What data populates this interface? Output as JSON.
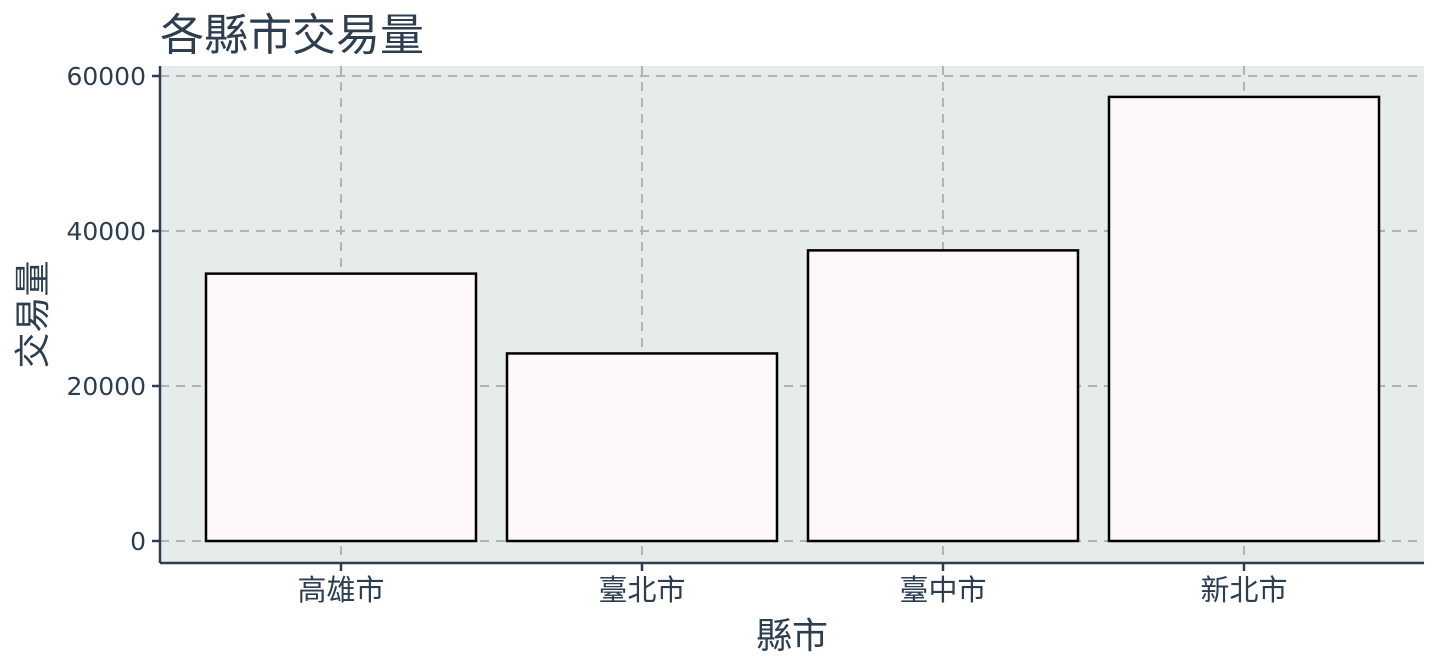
{
  "chart_data": {
    "type": "bar",
    "title": "各縣市交易量",
    "xlabel": "縣市",
    "ylabel": "交易量",
    "categories": [
      "高雄市",
      "臺北市",
      "臺中市",
      "新北市"
    ],
    "values": [
      34500,
      24200,
      37500,
      57300
    ],
    "ylim": [
      0,
      60000
    ],
    "yticks": [
      0,
      20000,
      40000,
      60000
    ],
    "grid": true,
    "legend": "none"
  },
  "colors": {
    "panel_background": "#e6ebec",
    "bar_fill": "#fff8f8",
    "bar_stroke": "#000000",
    "grid": "#b3b3b3",
    "axis": "#2c3e50",
    "text": "#2c3e50"
  }
}
